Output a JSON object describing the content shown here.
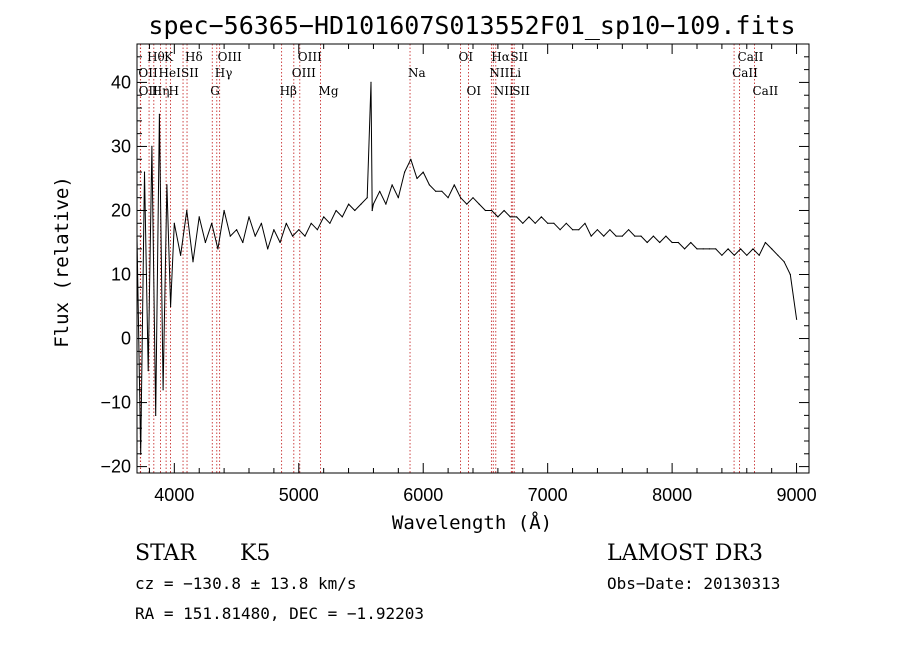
{
  "chart_data": {
    "type": "line",
    "title": "spec−56365−HD101607S013552F01_sp10−109.fits",
    "xlabel": "Wavelength (Å)",
    "ylabel": "Flux (relative)",
    "xlim": [
      3700,
      9100
    ],
    "ylim": [
      -21,
      46
    ],
    "xticks": [
      {
        "value": 4000,
        "label": "4000"
      },
      {
        "value": 5000,
        "label": "5000"
      },
      {
        "value": 6000,
        "label": "6000"
      },
      {
        "value": 7000,
        "label": "7000"
      },
      {
        "value": 8000,
        "label": "8000"
      },
      {
        "value": 9000,
        "label": "9000"
      }
    ],
    "yticks": [
      {
        "value": -20,
        "label": "−20"
      },
      {
        "value": -10,
        "label": "−10"
      },
      {
        "value": 0,
        "label": "0"
      },
      {
        "value": 10,
        "label": "10"
      },
      {
        "value": 20,
        "label": "20"
      },
      {
        "value": 30,
        "label": "30"
      },
      {
        "value": 40,
        "label": "40"
      }
    ],
    "series": [
      {
        "name": "flux",
        "x": [
          3700,
          3730,
          3760,
          3790,
          3820,
          3850,
          3880,
          3910,
          3940,
          3970,
          4000,
          4050,
          4100,
          4150,
          4200,
          4250,
          4300,
          4350,
          4400,
          4450,
          4500,
          4550,
          4600,
          4650,
          4700,
          4750,
          4800,
          4850,
          4900,
          4950,
          5000,
          5050,
          5100,
          5150,
          5200,
          5250,
          5300,
          5350,
          5400,
          5450,
          5500,
          5550,
          5580,
          5590,
          5600,
          5650,
          5700,
          5750,
          5800,
          5850,
          5900,
          5950,
          6000,
          6050,
          6100,
          6150,
          6200,
          6250,
          6300,
          6350,
          6400,
          6450,
          6500,
          6550,
          6600,
          6650,
          6700,
          6750,
          6800,
          6850,
          6900,
          6950,
          7000,
          7050,
          7100,
          7150,
          7200,
          7250,
          7300,
          7350,
          7400,
          7450,
          7500,
          7550,
          7600,
          7650,
          7700,
          7750,
          7800,
          7850,
          7900,
          7950,
          8000,
          8050,
          8100,
          8150,
          8200,
          8250,
          8300,
          8350,
          8400,
          8450,
          8500,
          8550,
          8600,
          8650,
          8700,
          8750,
          8800,
          8850,
          8900,
          8950,
          9000
        ],
        "y": [
          16,
          -18,
          26,
          -5,
          30,
          -12,
          35,
          -8,
          24,
          5,
          18,
          13,
          20,
          12,
          19,
          15,
          18,
          14,
          20,
          16,
          17,
          15,
          19,
          16,
          18,
          14,
          17,
          15,
          18,
          16,
          17,
          16,
          18,
          17,
          19,
          18,
          20,
          19,
          21,
          20,
          21,
          22,
          40,
          20,
          21,
          23,
          21,
          24,
          22,
          26,
          28,
          25,
          26,
          24,
          23,
          23,
          22,
          24,
          22,
          21,
          22,
          21,
          20,
          20,
          19,
          20,
          19,
          19,
          18,
          19,
          18,
          19,
          18,
          18,
          17,
          18,
          17,
          17,
          18,
          16,
          17,
          16,
          17,
          16,
          16,
          17,
          16,
          16,
          15,
          16,
          15,
          16,
          15,
          15,
          14,
          15,
          14,
          14,
          14,
          14,
          13,
          14,
          13,
          14,
          13,
          14,
          13,
          15,
          14,
          13,
          12,
          10,
          3
        ]
      }
    ],
    "lines": [
      {
        "name": "OII",
        "wave": 3727,
        "row": 2
      },
      {
        "name": "Hθ",
        "wave": 3797,
        "row": 1
      },
      {
        "name": "OII",
        "wave": 3729,
        "row": 3
      },
      {
        "name": "Hη",
        "wave": 3835,
        "row": 3
      },
      {
        "name": "HeI",
        "wave": 3889,
        "row": 2
      },
      {
        "name": "K",
        "wave": 3934,
        "row": 1
      },
      {
        "name": "H",
        "wave": 3969,
        "row": 3
      },
      {
        "name": "SII",
        "wave": 4070,
        "row": 2
      },
      {
        "name": "Hδ",
        "wave": 4102,
        "row": 1
      },
      {
        "name": "G",
        "wave": 4305,
        "row": 3
      },
      {
        "name": "Hγ",
        "wave": 4341,
        "row": 2
      },
      {
        "name": "OIII",
        "wave": 4364,
        "row": 1
      },
      {
        "name": "Hβ",
        "wave": 4862,
        "row": 3
      },
      {
        "name": "OIII",
        "wave": 4960,
        "row": 2
      },
      {
        "name": "OIII",
        "wave": 5008,
        "row": 1
      },
      {
        "name": "Mg",
        "wave": 5175,
        "row": 3
      },
      {
        "name": "Na",
        "wave": 5894,
        "row": 2
      },
      {
        "name": "OI",
        "wave": 6300,
        "row": 1
      },
      {
        "name": "OI",
        "wave": 6364,
        "row": 3
      },
      {
        "name": "NII",
        "wave": 6548,
        "row": 2
      },
      {
        "name": "Hα",
        "wave": 6563,
        "row": 1
      },
      {
        "name": "NII",
        "wave": 6583,
        "row": 3
      },
      {
        "name": "Li",
        "wave": 6708,
        "row": 2
      },
      {
        "name": "SII",
        "wave": 6716,
        "row": 1
      },
      {
        "name": "SII",
        "wave": 6731,
        "row": 3
      },
      {
        "name": "CaII",
        "wave": 8498,
        "row": 2
      },
      {
        "name": "CaII",
        "wave": 8542,
        "row": 1
      },
      {
        "name": "CaII",
        "wave": 8662,
        "row": 3
      }
    ]
  },
  "info": {
    "object_type": "STAR",
    "subclass": "K5",
    "cz": "cz = −130.8 ± 13.8 km/s",
    "coords": "RA = 151.81480, DEC =  −1.92203",
    "survey": "LAMOST DR3",
    "obs_date": "Obs−Date: 20130313"
  }
}
